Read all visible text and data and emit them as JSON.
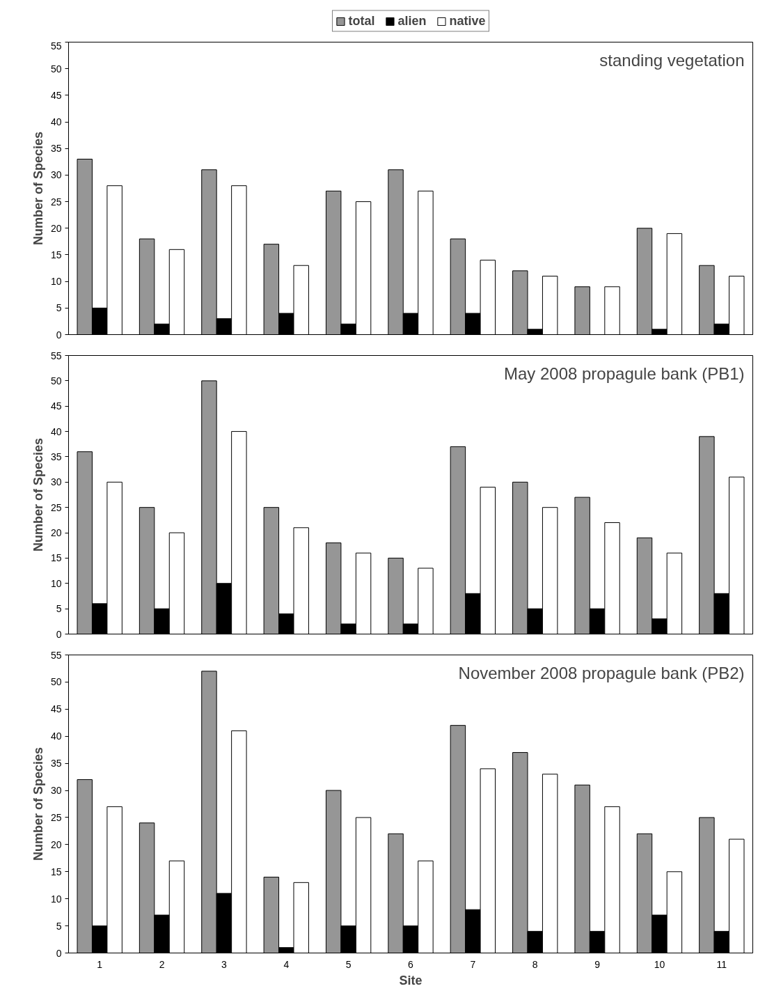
{
  "chart_data": [
    {
      "type": "bar",
      "title": "standing vegetation",
      "ylabel": "Number of Species",
      "categories": [
        "1",
        "2",
        "3",
        "4",
        "5",
        "6",
        "7",
        "8",
        "9",
        "10",
        "11"
      ],
      "series": [
        {
          "name": "total",
          "color": "#969696",
          "values": [
            33,
            18,
            31,
            17,
            27,
            31,
            18,
            12,
            9,
            20,
            13
          ]
        },
        {
          "name": "alien",
          "color": "#000000",
          "values": [
            5,
            2,
            3,
            4,
            2,
            4,
            4,
            1,
            0,
            1,
            2
          ]
        },
        {
          "name": "native",
          "color": "#ffffff",
          "values": [
            28,
            16,
            28,
            13,
            25,
            27,
            14,
            11,
            9,
            19,
            11
          ]
        }
      ],
      "ylim": [
        0,
        55
      ],
      "yticks": [
        0,
        5,
        10,
        15,
        20,
        25,
        30,
        35,
        40,
        45,
        50,
        55
      ],
      "grid": false,
      "legend": "top",
      "tick_labels": "y"
    },
    {
      "type": "bar",
      "title": "May 2008 propagule bank (PB1)",
      "ylabel": "Number of Species",
      "categories": [
        "1",
        "2",
        "3",
        "4",
        "5",
        "6",
        "7",
        "8",
        "9",
        "10",
        "11"
      ],
      "series": [
        {
          "color": "#969696",
          "values": [
            36,
            25,
            50,
            25,
            18,
            15,
            37,
            30,
            27,
            19,
            39
          ]
        },
        {
          "color": "#000000",
          "values": [
            6,
            5,
            10,
            4,
            2,
            2,
            8,
            5,
            5,
            3,
            8
          ]
        },
        {
          "color": "#ffffff",
          "values": [
            30,
            20,
            40,
            21,
            16,
            13,
            29,
            25,
            22,
            16,
            31
          ]
        }
      ],
      "ylim": [
        0,
        55
      ],
      "yticks": [
        0,
        5,
        10,
        15,
        20,
        25,
        30,
        35,
        40,
        45,
        50,
        55
      ],
      "grid": false,
      "legend": false,
      "tick_labels": "y"
    },
    {
      "type": "bar",
      "title": "November 2008 propagule bank (PB2)",
      "xlabel": "Site",
      "ylabel": "Number of Species",
      "categories": [
        "1",
        "2",
        "3",
        "4",
        "5",
        "6",
        "7",
        "8",
        "9",
        "10",
        "11"
      ],
      "series": [
        {
          "color": "#969696",
          "values": [
            32,
            24,
            52,
            14,
            30,
            22,
            42,
            37,
            31,
            22,
            25
          ]
        },
        {
          "color": "#000000",
          "values": [
            5,
            7,
            11,
            1,
            5,
            5,
            8,
            4,
            4,
            7,
            4
          ]
        },
        {
          "color": "#ffffff",
          "values": [
            27,
            17,
            41,
            13,
            25,
            17,
            34,
            33,
            27,
            15,
            21
          ]
        }
      ],
      "ylim": [
        0,
        55
      ],
      "yticks": [
        0,
        5,
        10,
        15,
        20,
        25,
        30,
        35,
        40,
        45,
        50,
        55
      ],
      "grid": false,
      "legend": false
    }
  ]
}
